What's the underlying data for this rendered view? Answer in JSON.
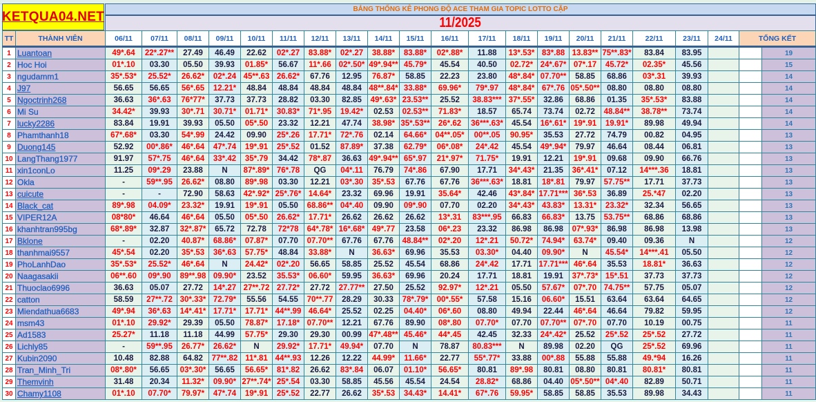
{
  "logo": "KETQUA04.NET",
  "title": "BẢNG THỐNG KÊ PHONG ĐỘ ACE THAM GIA TOPIC  LOTTO CẶP",
  "month": "11/2025",
  "headers": {
    "tt": "TT",
    "member": "THÀNH VIÊN",
    "total": "TỔNG KẾT"
  },
  "dates": [
    "06/11",
    "07/11",
    "08/11",
    "09/11",
    "10/11",
    "11/11",
    "12/11",
    "13/11",
    "14/11",
    "15/11",
    "16/11",
    "17/11",
    "18/11",
    "19/11",
    "20/11",
    "21/11",
    "22/11",
    "23/11",
    "24/11"
  ],
  "colors": {
    "hit": "#ff0000",
    "normal": "#1a1a40",
    "name": "#1f5fbf",
    "logo_bg": "#ffff00"
  },
  "rows": [
    {
      "tt": "1",
      "name": "Luantoan",
      "link": true,
      "values": [
        "49*.64",
        "22*.27**",
        "27.49",
        "46.49",
        "22.62",
        "02*.27",
        "83.88*",
        "02*.27",
        "38.88*",
        "83.88*",
        "02*.88*",
        "11.88",
        "13*.53*",
        "83*.88",
        "13.83**",
        "75**.83*",
        "83.84",
        "83.95",
        ""
      ],
      "total": "19"
    },
    {
      "tt": "2",
      "name": "Hoc Hoi",
      "link": false,
      "values": [
        "01*.10",
        "03.30",
        "05.50",
        "39.93",
        "01.85*",
        "56.67",
        "11*.66",
        "02*.50*",
        "49*.94**",
        "45.79*",
        "45.54",
        "40.50",
        "02.72*",
        "24*.67*",
        "07*.17",
        "45.72*",
        "02.35*",
        "45.56",
        ""
      ],
      "total": "15"
    },
    {
      "tt": "3",
      "name": "ngudamm1",
      "link": false,
      "values": [
        "35*.53*",
        "25.52*",
        "26.62*",
        "02*.24",
        "45**.63",
        "26.62*",
        "67.76",
        "12.95",
        "76.87*",
        "58.85",
        "22.23",
        "23.80",
        "48*.84*",
        "07.70**",
        "58.85",
        "68.86",
        "03*.31",
        "39.93",
        ""
      ],
      "total": "14"
    },
    {
      "tt": "4",
      "name": "J97",
      "link": true,
      "values": [
        "56.65",
        "56.65",
        "56*.65",
        "12.21*",
        "48.84",
        "48.84",
        "48.84",
        "48.84",
        "48**.84*",
        "33.88*",
        "69.96*",
        "79*.97",
        "48*.84*",
        "67*.76",
        "05*.50**",
        "08.80",
        "08.80",
        "08.80",
        ""
      ],
      "total": "14"
    },
    {
      "tt": "5",
      "name": "Ngoctrinh268",
      "link": true,
      "values": [
        "36.63",
        "36*.63",
        "76*77*",
        "37.73",
        "37.73",
        "28.82",
        "03.30",
        "82.85",
        "49*.63*",
        "23.53**",
        "25.52",
        "38.83***",
        "37*.55*",
        "32.86",
        "68.86",
        "01.35",
        "35*.53*",
        "83.88",
        ""
      ],
      "total": "14"
    },
    {
      "tt": "6",
      "name": "Mi Su",
      "link": false,
      "values": [
        "34.42*",
        "39.93",
        "30*.71",
        "30.71*",
        "01.71*",
        "30.83*",
        "71*.95",
        "19.42*",
        "02.53",
        "02.53**",
        "71.83*",
        "18.57",
        "65.74",
        "73.74",
        "02.72",
        "48.84**",
        "38.78**",
        "73.74",
        ""
      ],
      "total": "14"
    },
    {
      "tt": "7",
      "name": "lucky2286",
      "link": true,
      "values": [
        "83.84",
        "19.91",
        "39.93",
        "05.50",
        "05*.50",
        "23.32",
        "12.21",
        "47.74",
        "38.98*",
        "35*.53**",
        "26*.62",
        "36***.63*",
        "45.54",
        "16*.61*",
        "19*.91",
        "19.91*",
        "89.98",
        "49.94",
        ""
      ],
      "total": "14"
    },
    {
      "tt": "8",
      "name": "Phamthanh18",
      "link": false,
      "values": [
        "67*.68*",
        "03.30",
        "54*.99",
        "24.42",
        "09.90",
        "25*.26",
        "17.71*",
        "72*.76",
        "02.14",
        "64.66*",
        "04**.05*",
        "00**.05",
        "90.95*",
        "35.53",
        "27.72",
        "74.79",
        "00.82",
        "04.95",
        ""
      ],
      "total": "13"
    },
    {
      "tt": "9",
      "name": "Duong145",
      "link": true,
      "values": [
        "52.92",
        "00*.86*",
        "46*.64",
        "47*.74",
        "19*.91",
        "25*.52",
        "01.52",
        "87.89*",
        "37.38",
        "62.79*",
        "06*.08*",
        "24*.42",
        "45.54",
        "49*.94*",
        "79.97",
        "46.64",
        "08.44",
        "06.81",
        ""
      ],
      "total": "13"
    },
    {
      "tt": "10",
      "name": "LangThang1977",
      "link": false,
      "values": [
        "91.97",
        "57*.75",
        "46*.64",
        "33*.42",
        "35*.79",
        "34.42",
        "78*.87",
        "36.63",
        "49*.94**",
        "65*.97",
        "21*.97*",
        "71.75*",
        "19.91",
        "12.21",
        "19*.91",
        "09.68",
        "09.90",
        "66.76",
        ""
      ],
      "total": "13"
    },
    {
      "tt": "11",
      "name": "xin1conLo",
      "link": false,
      "values": [
        "11.25",
        "09*.29",
        "23.88",
        "N",
        "87*.89*",
        "76*.78",
        "QG",
        "04*.11",
        "76.79",
        "74*.86",
        "67.90",
        "17.71",
        "34*.43*",
        "21.35",
        "36*.41*",
        "07.12",
        "14***.36",
        "18.81",
        ""
      ],
      "total": "13"
    },
    {
      "tt": "12",
      "name": "Okla",
      "link": false,
      "values": [
        "-",
        "59**.95",
        "26.62*",
        "08.80",
        "89*.98",
        "03.30",
        "12.21",
        "03*.30",
        "35*.53",
        "67.76",
        "67.76",
        "36***.63*",
        "18.81",
        "18*.81",
        "79.97",
        "57.75**",
        "17.71",
        "37.73",
        ""
      ],
      "total": "13"
    },
    {
      "tt": "13",
      "name": "cuicute",
      "link": true,
      "values": [
        "-",
        "-",
        "72.90",
        "58.63",
        "42*.92*",
        "25*.76*",
        "14.64*",
        "23.32",
        "69.96",
        "19.91",
        "35.64*",
        "42.46",
        "43*.84*",
        "17.71***",
        "36*.53",
        "36.89",
        "25.*47",
        "02.20",
        ""
      ],
      "total": "13"
    },
    {
      "tt": "14",
      "name": "Black_cat",
      "link": true,
      "values": [
        "89*.98",
        "04.09*",
        "23.32*",
        "19.91",
        "19*.91",
        "05.50",
        "68.86**",
        "04*.40",
        "09.90",
        "09*.90",
        "07.70",
        "02.20",
        "34*.43*",
        "43.83*",
        "13.31*",
        "23.32*",
        "32.34",
        "56.65",
        ""
      ],
      "total": "13"
    },
    {
      "tt": "15",
      "name": "VIPER12A",
      "link": false,
      "values": [
        "08*80*",
        "46.64",
        "46*.64",
        "05.50",
        "05*.50",
        "26.62*",
        "17.71*",
        "26.62",
        "26.62",
        "26.62",
        "13*.31",
        "83***.95",
        "66.83",
        "66.83*",
        "13.75",
        "53.75**",
        "68.86",
        "68.86",
        ""
      ],
      "total": "13"
    },
    {
      "tt": "16",
      "name": "khanhtran995bg",
      "link": false,
      "values": [
        "68*.89*",
        "32.87",
        "32*.87*",
        "65.72",
        "72.78",
        "72*78",
        "64*.78*",
        "16*.68*",
        "49*.77",
        "23.58",
        "06*.23",
        "23.32",
        "86.98",
        "86.98",
        "07*.93*",
        "86.98",
        "86.98",
        "13.98",
        ""
      ],
      "total": "13"
    },
    {
      "tt": "17",
      "name": "Bklone",
      "link": true,
      "values": [
        "-",
        "02.20",
        "40.87*",
        "68.86*",
        "07.87*",
        "07.70",
        "07.70**",
        "67.76",
        "67.76",
        "48.84**",
        "02*.20",
        "12*.21",
        "50.72*",
        "74.94*",
        "63.74*",
        "09.40",
        "09.36",
        "N",
        ""
      ],
      "total": "12"
    },
    {
      "tt": "18",
      "name": "thanhmai9557",
      "link": false,
      "values": [
        "45*.54",
        "02.20",
        "35*.53",
        "36*.63",
        "57.75*",
        "48.84",
        "33.88*",
        "N",
        "36.63*",
        "69.96",
        "35.53",
        "03.30*",
        "04.40",
        "09.90*",
        "N",
        "45.54*",
        "14***.41",
        "05.50",
        ""
      ],
      "total": "12"
    },
    {
      "tt": "19",
      "name": "PhoLanhDao",
      "link": false,
      "values": [
        "35*.53*",
        "25.52*",
        "46*.64",
        "N",
        "24.42*",
        "02*.20",
        "56.65",
        "58.85",
        "25.52",
        "45.54",
        "68.86",
        "24*.42",
        "17.71",
        "17.71***",
        "46*.64",
        "35.53",
        "18.81*",
        "36.63",
        ""
      ],
      "total": "12"
    },
    {
      "tt": "20",
      "name": "Naagasakii",
      "link": false,
      "values": [
        "06**.60",
        "09*.90",
        "89**.98",
        "09.90*",
        "23.52",
        "35.53*",
        "06.60*",
        "59.95",
        "36.63*",
        "69.96",
        "20.24",
        "17.71",
        "18.81",
        "19.91",
        "37*.73*",
        "15*.51",
        "37.73",
        "37.73",
        ""
      ],
      "total": "12"
    },
    {
      "tt": "21",
      "name": "Thuoclao6996",
      "link": false,
      "values": [
        "36.63",
        "05.07",
        "27.72",
        "14*.27",
        "27**.72",
        "27.72*",
        "27.72",
        "27.77**",
        "27.50",
        "25.52",
        "92.97*",
        "12*.21",
        "05.50",
        "57.67*",
        "07*.70",
        "74.75**",
        "57.75",
        "05.07",
        ""
      ],
      "total": "12"
    },
    {
      "tt": "22",
      "name": "catton",
      "link": false,
      "values": [
        "58.59",
        "27**.72",
        "30*.33*",
        "72.79*",
        "55.56",
        "54.55",
        "70**.77",
        "28.29",
        "30.33",
        "78*.79*",
        "00*.55*",
        "57.58",
        "15.16",
        "06.60*",
        "15.51",
        "63.64",
        "63.64",
        "64.65",
        ""
      ],
      "total": "12"
    },
    {
      "tt": "23",
      "name": "Miendathua6683",
      "link": false,
      "values": [
        "49*.94",
        "36*.63",
        "14*.41*",
        "17.71*",
        "17.71*",
        "44**.99",
        "46.64*",
        "25.52",
        "02.25",
        "04.40*",
        "06*.60",
        "08.80",
        "49.94",
        "22.44",
        "46*.64",
        "46.64",
        "79.82",
        "59.95",
        ""
      ],
      "total": "12"
    },
    {
      "tt": "24",
      "name": "msm43",
      "link": false,
      "values": [
        "01*.10",
        "29.92*",
        "29.39",
        "05.50",
        "78.87*",
        "17.18*",
        "07.70**",
        "12.21",
        "67.76",
        "89.90",
        "08*.80",
        "07.70*",
        "07.70",
        "07.70**",
        "07*.70",
        "07.70",
        "10.19",
        "00.75",
        ""
      ],
      "total": "11"
    },
    {
      "tt": "25",
      "name": "Ad1583",
      "link": false,
      "values": [
        "25.27*",
        "11.18",
        "11.18",
        "44.99",
        "57.75*",
        "29.30",
        "29.30",
        "00.99",
        "47*.48**",
        "45.46*",
        "44*.45",
        "42.45",
        "32.33",
        "24*.42*",
        "25.52",
        "25*.52",
        "25*.52",
        "27.72",
        ""
      ],
      "total": "11"
    },
    {
      "tt": "26",
      "name": "Lichly85",
      "link": false,
      "values": [
        "-",
        "59**.95",
        "26.77*",
        "26.62*",
        "N",
        "29.92*",
        "17.71*",
        "49.94*",
        "07.70",
        "N",
        "78.87",
        "80.83***",
        "N",
        "89.98",
        "02.20",
        "QG",
        "25*.52",
        "69.96",
        ""
      ],
      "total": "11"
    },
    {
      "tt": "27",
      "name": "Kubin2090",
      "link": false,
      "values": [
        "10.48",
        "82.88",
        "64.82",
        "77**.82",
        "11*.81",
        "44**.93",
        "12.26",
        "12.22",
        "44.99*",
        "11.66*",
        "22.77",
        "55*.77*",
        "33.88",
        "00*.88",
        "55.88",
        "55.88",
        "49.*94",
        "16.26",
        ""
      ],
      "total": "11"
    },
    {
      "tt": "28",
      "name": "Tran_Minh_Tri",
      "link": false,
      "values": [
        "08*.80*",
        "56.65",
        "03*.30*",
        "56.65",
        "56.65*",
        "81*.82",
        "26.62",
        "83*.84",
        "06.07",
        "01.10*",
        "56.65*",
        "80.81",
        "89*.98",
        "80.81",
        "08.80",
        "80.81",
        "80.81*",
        "80.81",
        ""
      ],
      "total": "11"
    },
    {
      "tt": "29",
      "name": "Themvinh",
      "link": true,
      "values": [
        "31.48",
        "20.34",
        "11.32*",
        "09.90*",
        "27**.74*",
        "25*.54",
        "03.30",
        "58.85",
        "45.56",
        "45.54",
        "24.54",
        "28.82*",
        "68.86",
        "04.40",
        "05*.50**",
        "04*.40",
        "82.89",
        "50.71",
        ""
      ],
      "total": "11"
    },
    {
      "tt": "30",
      "name": "Chamy1108",
      "link": true,
      "values": [
        "01*.10",
        "07.70*",
        "79.97*",
        "47*.74",
        "19*.91",
        "25*.52",
        "22.77",
        "26.62",
        "35*.53",
        "34.43*",
        "14.41*",
        "67*.76",
        "59.95*",
        "58.85",
        "58.85",
        "35.53",
        "89.98",
        "34.43",
        ""
      ],
      "total": "11"
    }
  ]
}
